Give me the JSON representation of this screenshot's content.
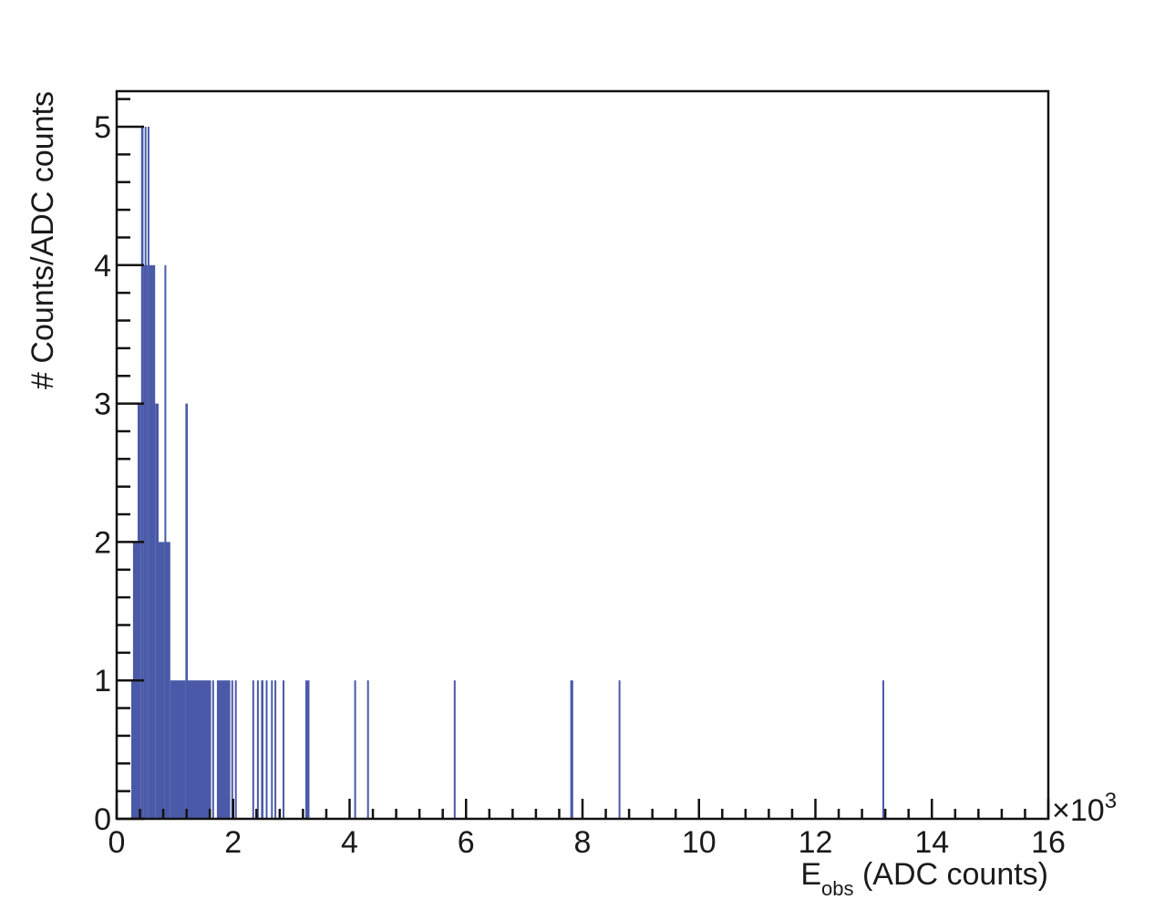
{
  "chart_data": {
    "type": "bar",
    "subtype": "histogram",
    "title": "",
    "xlabel": "E_obs (ADC counts)",
    "xlabel_main": "E",
    "xlabel_sub": "obs",
    "xlabel_rest": " (ADC counts)",
    "ylabel": "# Counts/ADC counts",
    "x_multiplier": "×10",
    "x_multiplier_exp": "3",
    "xlim": [
      0,
      16
    ],
    "ylim": [
      0,
      5.25
    ],
    "x_ticks": [
      "0",
      "2",
      "4",
      "6",
      "8",
      "10",
      "12",
      "14",
      "16"
    ],
    "y_ticks": [
      "0",
      "1",
      "2",
      "3",
      "4",
      "5"
    ],
    "grid": false,
    "legend": null,
    "bar_color": "#4a5aa8",
    "x_units": "x10^3 ADC counts",
    "bins": [
      {
        "x0": 0.25,
        "x1": 0.28,
        "count": 1
      },
      {
        "x0": 0.28,
        "x1": 0.36,
        "count": 2
      },
      {
        "x0": 0.36,
        "x1": 0.42,
        "count": 3
      },
      {
        "x0": 0.42,
        "x1": 0.46,
        "count": 5
      },
      {
        "x0": 0.46,
        "x1": 0.48,
        "count": 4
      },
      {
        "x0": 0.48,
        "x1": 0.5,
        "count": 5
      },
      {
        "x0": 0.5,
        "x1": 0.53,
        "count": 4
      },
      {
        "x0": 0.53,
        "x1": 0.56,
        "count": 5
      },
      {
        "x0": 0.56,
        "x1": 0.66,
        "count": 4
      },
      {
        "x0": 0.66,
        "x1": 0.72,
        "count": 3
      },
      {
        "x0": 0.72,
        "x1": 0.82,
        "count": 2
      },
      {
        "x0": 0.82,
        "x1": 0.84,
        "count": 4
      },
      {
        "x0": 0.84,
        "x1": 0.92,
        "count": 2
      },
      {
        "x0": 0.92,
        "x1": 1.18,
        "count": 1
      },
      {
        "x0": 1.18,
        "x1": 1.22,
        "count": 3
      },
      {
        "x0": 1.22,
        "x1": 1.62,
        "count": 1
      },
      {
        "x0": 1.64,
        "x1": 1.66,
        "count": 1
      },
      {
        "x0": 1.72,
        "x1": 1.95,
        "count": 1
      },
      {
        "x0": 1.97,
        "x1": 1.99,
        "count": 1
      },
      {
        "x0": 2.03,
        "x1": 2.06,
        "count": 1
      },
      {
        "x0": 2.33,
        "x1": 2.36,
        "count": 1
      },
      {
        "x0": 2.41,
        "x1": 2.43,
        "count": 1
      },
      {
        "x0": 2.48,
        "x1": 2.52,
        "count": 1
      },
      {
        "x0": 2.56,
        "x1": 2.58,
        "count": 1
      },
      {
        "x0": 2.65,
        "x1": 2.67,
        "count": 1
      },
      {
        "x0": 2.71,
        "x1": 2.74,
        "count": 1
      },
      {
        "x0": 2.85,
        "x1": 2.87,
        "count": 1
      },
      {
        "x0": 3.24,
        "x1": 3.31,
        "count": 1
      },
      {
        "x0": 4.08,
        "x1": 4.1,
        "count": 1
      },
      {
        "x0": 4.3,
        "x1": 4.32,
        "count": 1
      },
      {
        "x0": 5.79,
        "x1": 5.81,
        "count": 1
      },
      {
        "x0": 7.79,
        "x1": 7.84,
        "count": 1
      },
      {
        "x0": 8.62,
        "x1": 8.64,
        "count": 1
      },
      {
        "x0": 13.15,
        "x1": 13.17,
        "count": 1
      }
    ]
  }
}
